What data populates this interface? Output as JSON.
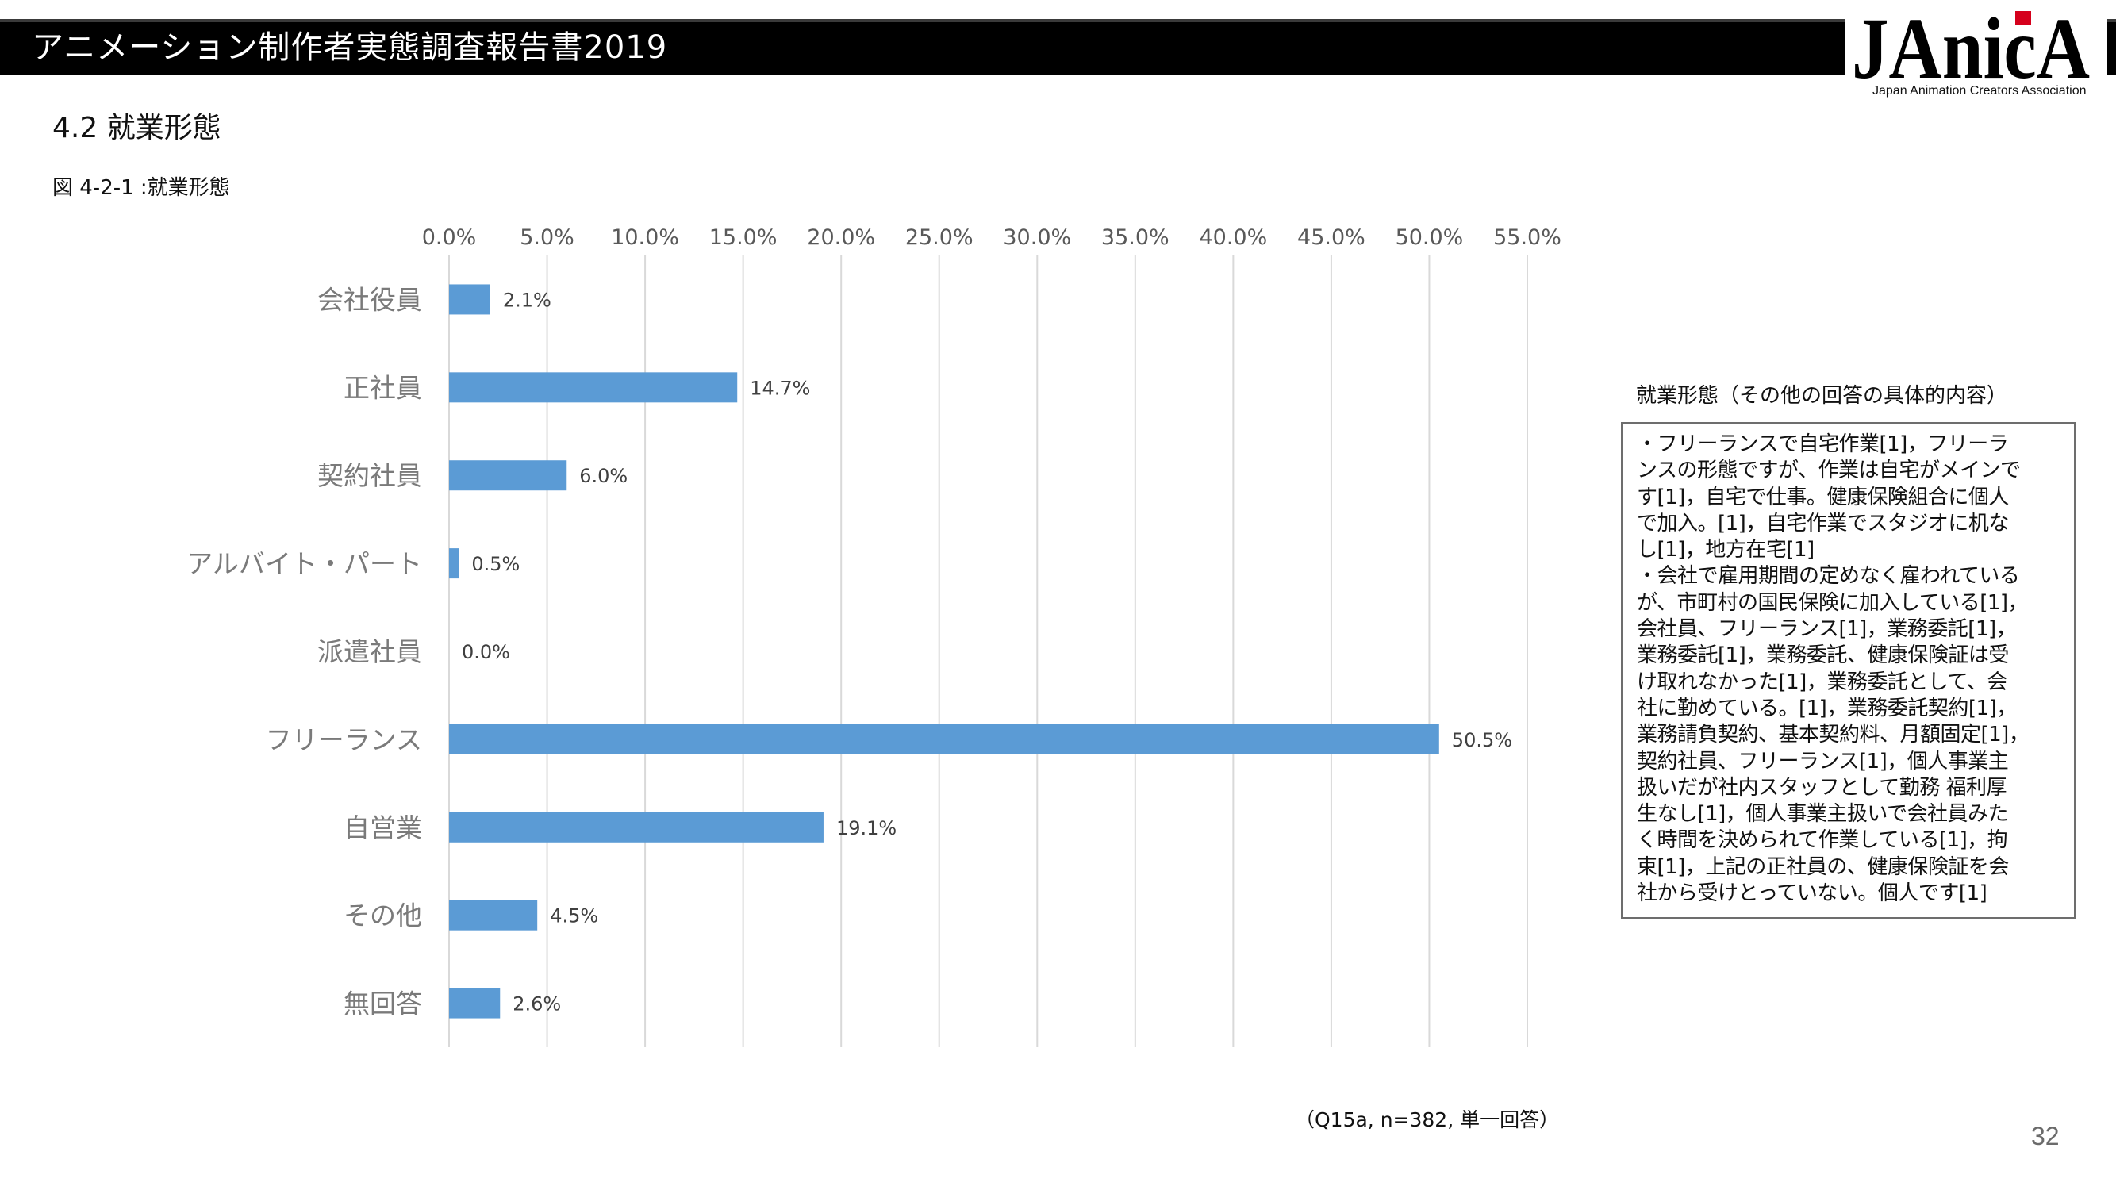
{
  "header": {
    "title": "アニメーション制作者実態調査報告書2019"
  },
  "logo": {
    "wordmark": "JAnicA",
    "tagline": "Japan Animation Creators Association",
    "accent_color": "#d5001c"
  },
  "section": {
    "title": "4.2  就業形態",
    "figure_title": "図 4-2-1 :就業形態"
  },
  "chart_data": {
    "type": "bar",
    "orientation": "horizontal",
    "title": "",
    "xlabel": "",
    "ylabel": "",
    "categories": [
      "会社役員",
      "正社員",
      "契約社員",
      "アルバイト・パート",
      "派遣社員",
      "フリーランス",
      "自営業",
      "その他",
      "無回答"
    ],
    "values": [
      2.1,
      14.7,
      6.0,
      0.5,
      0.0,
      50.5,
      19.1,
      4.5,
      2.6
    ],
    "value_labels": [
      "2.1%",
      "14.7%",
      "6.0%",
      "0.5%",
      "0.0%",
      "50.5%",
      "19.1%",
      "4.5%",
      "2.6%"
    ],
    "xlim": [
      0,
      55
    ],
    "x_ticks": [
      0,
      5,
      10,
      15,
      20,
      25,
      30,
      35,
      40,
      45,
      50,
      55
    ],
    "x_tick_labels": [
      "0.0%",
      "5.0%",
      "10.0%",
      "15.0%",
      "20.0%",
      "25.0%",
      "30.0%",
      "35.0%",
      "40.0%",
      "45.0%",
      "50.0%",
      "55.0%"
    ],
    "x_axis_position": "top",
    "grid": true,
    "legend": "none",
    "bar_color": "#5b9bd5",
    "grid_color": "#d9d9d9"
  },
  "notes": {
    "heading": "就業形態（その他の回答の具体的内容）",
    "lines": [
      "・フリーランスで自宅作業[1]，フリーラ",
      "ンスの形態ですが、作業は自宅がメインで",
      "す[1]，自宅で仕事。健康保険組合に個人",
      "で加入。[1]，自宅作業でスタジオに机な",
      "し[1]，地方在宅[1]",
      "・会社で雇用期間の定めなく雇われている",
      "が、市町村の国民保険に加入している[1]，",
      "会社員、フリーランス[1]，業務委託[1]，",
      "業務委託[1]，業務委託、健康保険証は受",
      "け取れなかった[1]，業務委託として、会",
      "社に勤めている。[1]，業務委託契約[1]，",
      "業務請負契約、基本契約料、月額固定[1]，",
      "契約社員、フリーランス[1]，個人事業主",
      "扱いだが社内スタッフとして勤務 福利厚",
      "生なし[1]，個人事業主扱いで会社員みた",
      "く時間を決められて作業している[1]，拘",
      "束[1]，上記の正社員の、健康保険証を会",
      "社から受けとっていない。個人です[1]"
    ]
  },
  "footnote": "（Q15a, n=382, 単一回答）",
  "page_number": "32"
}
